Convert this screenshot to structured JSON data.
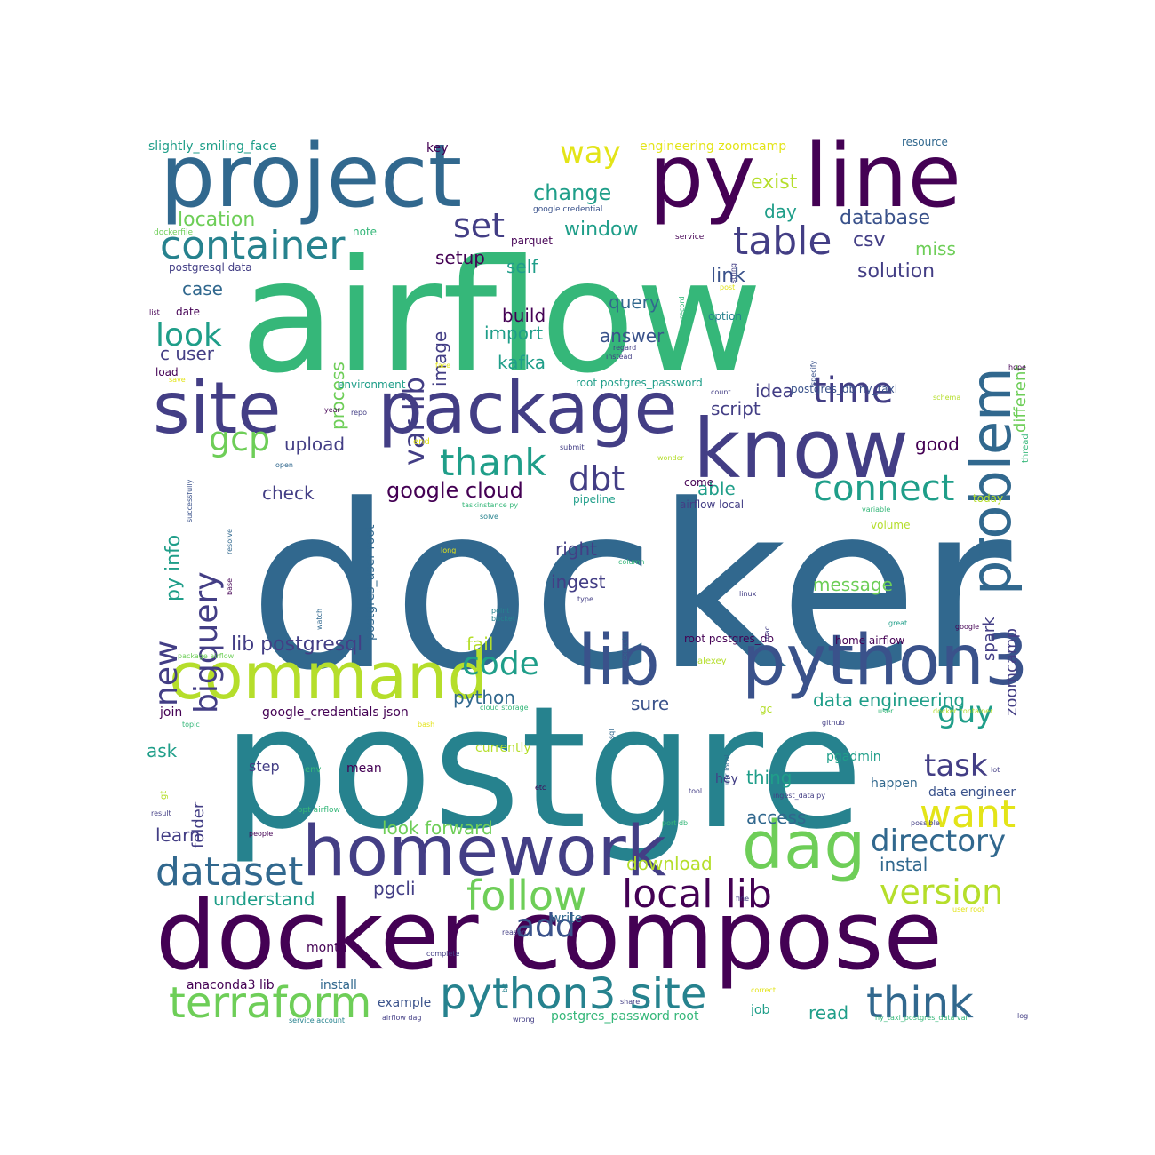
{
  "palette": {
    "darkpurple": "#440154",
    "indigo": "#433e85",
    "slate": "#3a528b",
    "blue": "#31688e",
    "teal": "#26828e",
    "seafoam": "#1f9e89",
    "green": "#35b779",
    "lime": "#6ece58",
    "yellowgreen": "#b5de2b",
    "yellow": "#e3e418"
  },
  "words": [
    {
      "text": "docker",
      "color": "blue"
    },
    {
      "text": "airflow",
      "color": "green"
    },
    {
      "text": "postgre",
      "color": "teal"
    },
    {
      "text": "docker compose",
      "color": "darkpurple"
    },
    {
      "text": "package",
      "color": "indigo"
    },
    {
      "text": "site",
      "color": "indigo"
    },
    {
      "text": "project",
      "color": "blue"
    },
    {
      "text": "line",
      "color": "darkpurple"
    },
    {
      "text": "py",
      "color": "darkpurple"
    },
    {
      "text": "know",
      "color": "indigo"
    },
    {
      "text": "python3",
      "color": "slate"
    },
    {
      "text": "homework",
      "color": "indigo"
    },
    {
      "text": "command",
      "color": "yellowgreen"
    },
    {
      "text": "lib",
      "color": "slate"
    },
    {
      "text": "problem",
      "color": "blue"
    },
    {
      "text": "dag",
      "color": "lime"
    },
    {
      "text": "container",
      "color": "teal"
    },
    {
      "text": "table",
      "color": "indigo"
    },
    {
      "text": "python3 site",
      "color": "teal"
    },
    {
      "text": "terraform",
      "color": "lime"
    },
    {
      "text": "follow",
      "color": "lime"
    },
    {
      "text": "local lib",
      "color": "darkpurple"
    },
    {
      "text": "think",
      "color": "blue"
    },
    {
      "text": "dataset",
      "color": "blue"
    },
    {
      "text": "directory",
      "color": "blue"
    },
    {
      "text": "version",
      "color": "yellowgreen"
    },
    {
      "text": "want",
      "color": "yellow"
    },
    {
      "text": "connect",
      "color": "seafoam"
    },
    {
      "text": "thank",
      "color": "seafoam"
    },
    {
      "text": "time",
      "color": "indigo"
    },
    {
      "text": "code",
      "color": "seafoam"
    },
    {
      "text": "dbt",
      "color": "indigo"
    },
    {
      "text": "gcp",
      "color": "lime"
    },
    {
      "text": "set",
      "color": "indigo"
    },
    {
      "text": "way",
      "color": "yellow"
    },
    {
      "text": "look",
      "color": "seafoam"
    },
    {
      "text": "task",
      "color": "indigo"
    },
    {
      "text": "guy",
      "color": "seafoam"
    },
    {
      "text": "add",
      "color": "slate"
    },
    {
      "text": "bigquery",
      "color": "indigo"
    },
    {
      "text": "new",
      "color": "indigo"
    },
    {
      "text": "var lib",
      "color": "indigo"
    },
    {
      "text": "google cloud",
      "color": "darkpurple"
    },
    {
      "text": "lib postgresql",
      "color": "indigo"
    },
    {
      "text": "py info",
      "color": "seafoam"
    },
    {
      "text": "change",
      "color": "seafoam"
    },
    {
      "text": "exist",
      "color": "yellowgreen"
    },
    {
      "text": "location",
      "color": "lime"
    },
    {
      "text": "window",
      "color": "seafoam"
    },
    {
      "text": "database",
      "color": "slate"
    },
    {
      "text": "csv",
      "color": "indigo"
    },
    {
      "text": "day",
      "color": "seafoam"
    },
    {
      "text": "miss",
      "color": "lime"
    },
    {
      "text": "link",
      "color": "slate"
    },
    {
      "text": "solution",
      "color": "indigo"
    },
    {
      "text": "setup",
      "color": "darkpurple"
    },
    {
      "text": "self",
      "color": "seafoam"
    },
    {
      "text": "process",
      "color": "lime"
    },
    {
      "text": "image",
      "color": "indigo"
    },
    {
      "text": "query",
      "color": "blue"
    },
    {
      "text": "build",
      "color": "darkpurple"
    },
    {
      "text": "answer",
      "color": "slate"
    },
    {
      "text": "import",
      "color": "seafoam"
    },
    {
      "text": "kafka",
      "color": "seafoam"
    },
    {
      "text": "case",
      "color": "blue"
    },
    {
      "text": "c user",
      "color": "indigo"
    },
    {
      "text": "different",
      "color": "lime"
    },
    {
      "text": "idea",
      "color": "indigo"
    },
    {
      "text": "script",
      "color": "indigo"
    },
    {
      "text": "upload",
      "color": "indigo"
    },
    {
      "text": "good",
      "color": "darkpurple"
    },
    {
      "text": "check",
      "color": "indigo"
    },
    {
      "text": "able",
      "color": "seafoam"
    },
    {
      "text": "right",
      "color": "indigo"
    },
    {
      "text": "ingest",
      "color": "indigo"
    },
    {
      "text": "spark",
      "color": "indigo"
    },
    {
      "text": "zoomcamp",
      "color": "indigo"
    },
    {
      "text": "message",
      "color": "lime"
    },
    {
      "text": "fail",
      "color": "yellowgreen"
    },
    {
      "text": "python",
      "color": "blue"
    },
    {
      "text": "sure",
      "color": "slate"
    },
    {
      "text": "data engineering",
      "color": "seafoam"
    },
    {
      "text": "ask",
      "color": "seafoam"
    },
    {
      "text": "folder",
      "color": "indigo"
    },
    {
      "text": "step",
      "color": "indigo"
    },
    {
      "text": "mean",
      "color": "darkpurple"
    },
    {
      "text": "currently",
      "color": "yellowgreen"
    },
    {
      "text": "pgadmin",
      "color": "seafoam"
    },
    {
      "text": "hey",
      "color": "indigo"
    },
    {
      "text": "thing",
      "color": "seafoam"
    },
    {
      "text": "happen",
      "color": "blue"
    },
    {
      "text": "access",
      "color": "blue"
    },
    {
      "text": "learn",
      "color": "indigo"
    },
    {
      "text": "look forward",
      "color": "lime"
    },
    {
      "text": "download",
      "color": "yellowgreen"
    },
    {
      "text": "instal",
      "color": "blue"
    },
    {
      "text": "understand",
      "color": "seafoam"
    },
    {
      "text": "pgcli",
      "color": "indigo"
    },
    {
      "text": "join",
      "color": "darkpurple"
    },
    {
      "text": "google_credentials json",
      "color": "darkpurple"
    },
    {
      "text": "data engineer",
      "color": "slate"
    },
    {
      "text": "month",
      "color": "darkpurple"
    },
    {
      "text": "write",
      "color": "blue"
    },
    {
      "text": "anaconda3 lib",
      "color": "darkpurple"
    },
    {
      "text": "install",
      "color": "blue"
    },
    {
      "text": "example",
      "color": "slate"
    },
    {
      "text": "read",
      "color": "seafoam"
    },
    {
      "text": "job",
      "color": "seafoam"
    },
    {
      "text": "postgres_password root",
      "color": "green"
    },
    {
      "text": "slightly_smiling_face",
      "color": "seafoam"
    },
    {
      "text": "key",
      "color": "darkpurple"
    },
    {
      "text": "engineering zoomcamp",
      "color": "yellow"
    },
    {
      "text": "resource",
      "color": "blue"
    },
    {
      "text": "google credential",
      "color": "slate"
    },
    {
      "text": "note",
      "color": "green"
    },
    {
      "text": "parquet",
      "color": "darkpurple"
    },
    {
      "text": "dockerfile",
      "color": "lime"
    },
    {
      "text": "service",
      "color": "darkpurple"
    },
    {
      "text": "postgresql data",
      "color": "indigo"
    },
    {
      "text": "date",
      "color": "darkpurple"
    },
    {
      "text": "list",
      "color": "darkpurple"
    },
    {
      "text": "option",
      "color": "teal"
    },
    {
      "text": "load",
      "color": "darkpurple"
    },
    {
      "text": "environment",
      "color": "seafoam"
    },
    {
      "text": "root postgres_password",
      "color": "seafoam"
    },
    {
      "text": "postgres_db ny_taxi",
      "color": "slate"
    },
    {
      "text": "regard",
      "color": "indigo"
    },
    {
      "text": "instead",
      "color": "indigo"
    },
    {
      "text": "hope",
      "color": "darkpurple"
    },
    {
      "text": "thread",
      "color": "green"
    },
    {
      "text": "pipeline",
      "color": "seafoam"
    },
    {
      "text": "airflow local",
      "color": "indigo"
    },
    {
      "text": "come",
      "color": "darkpurple"
    },
    {
      "text": "today",
      "color": "yellowgreen"
    },
    {
      "text": "volume",
      "color": "yellowgreen"
    },
    {
      "text": "root postgres_db",
      "color": "darkpurple"
    },
    {
      "text": "home airflow",
      "color": "darkpurple"
    },
    {
      "text": "alexey",
      "color": "yellowgreen"
    },
    {
      "text": "gc",
      "color": "yellowgreen"
    },
    {
      "text": "postgres_user root",
      "color": "blue"
    },
    {
      "text": "ingest_data py",
      "color": "indigo"
    },
    {
      "text": "opt airflow",
      "color": "green"
    },
    {
      "text": "port db",
      "color": "green"
    },
    {
      "text": "ny_taxi_postgres_data var",
      "color": "green"
    },
    {
      "text": "airflow dag",
      "color": "indigo"
    },
    {
      "text": "service account",
      "color": "teal"
    },
    {
      "text": "package airflow",
      "color": "lime"
    },
    {
      "text": "cloud storage",
      "color": "green"
    },
    {
      "text": "docker container",
      "color": "yellowgreen"
    },
    {
      "text": "taskinstance py",
      "color": "green"
    },
    {
      "text": "env",
      "color": "green"
    },
    {
      "text": "gt",
      "color": "yellowgreen"
    },
    {
      "text": "result",
      "color": "indigo"
    },
    {
      "text": "people",
      "color": "darkpurple"
    },
    {
      "text": "tool",
      "color": "indigo"
    },
    {
      "text": "etc",
      "color": "darkpurple"
    },
    {
      "text": "github",
      "color": "indigo"
    },
    {
      "text": "user",
      "color": "green"
    },
    {
      "text": "lot",
      "color": "indigo"
    },
    {
      "text": "possible",
      "color": "indigo"
    },
    {
      "text": "user root",
      "color": "yellow"
    },
    {
      "text": "fine",
      "color": "indigo"
    },
    {
      "text": "complete",
      "color": "indigo"
    },
    {
      "text": "reason",
      "color": "indigo"
    },
    {
      "text": "share",
      "color": "indigo"
    },
    {
      "text": "wrong",
      "color": "indigo"
    },
    {
      "text": "correct",
      "color": "yellow"
    },
    {
      "text": "log",
      "color": "indigo"
    },
    {
      "text": "topic",
      "color": "green"
    },
    {
      "text": "bash",
      "color": "yellow"
    },
    {
      "text": "point",
      "color": "teal"
    },
    {
      "text": "bucket",
      "color": "teal"
    },
    {
      "text": "type",
      "color": "indigo"
    },
    {
      "text": "linux",
      "color": "indigo"
    },
    {
      "text": "great",
      "color": "seafoam"
    },
    {
      "text": "google",
      "color": "darkpurple"
    },
    {
      "text": "long",
      "color": "yellow"
    },
    {
      "text": "column",
      "color": "green"
    },
    {
      "text": "solve",
      "color": "teal"
    },
    {
      "text": "variable",
      "color": "green"
    },
    {
      "text": "wonder",
      "color": "yellowgreen"
    },
    {
      "text": "open",
      "color": "blue"
    },
    {
      "text": "end",
      "color": "yellow"
    },
    {
      "text": "submit",
      "color": "indigo"
    },
    {
      "text": "year",
      "color": "darkpurple"
    },
    {
      "text": "repo",
      "color": "indigo"
    },
    {
      "text": "schema",
      "color": "yellowgreen"
    },
    {
      "text": "count",
      "color": "indigo"
    },
    {
      "text": "face",
      "color": "yellow"
    },
    {
      "text": "save",
      "color": "yellow"
    },
    {
      "text": "post",
      "color": "yellow"
    },
    {
      "text": "string",
      "color": "indigo"
    },
    {
      "text": "record",
      "color": "green"
    },
    {
      "text": "specify",
      "color": "slate"
    },
    {
      "text": "successfully",
      "color": "slate"
    },
    {
      "text": "resolve",
      "color": "blue"
    },
    {
      "text": "base",
      "color": "darkpurple"
    },
    {
      "text": "watch",
      "color": "blue"
    },
    {
      "text": "execute",
      "color": "blue"
    },
    {
      "text": "mac",
      "color": "indigo"
    },
    {
      "text": "sql",
      "color": "blue"
    },
    {
      "text": "usr local",
      "color": "blue"
    },
    {
      "text": "bit",
      "color": "teal"
    }
  ]
}
